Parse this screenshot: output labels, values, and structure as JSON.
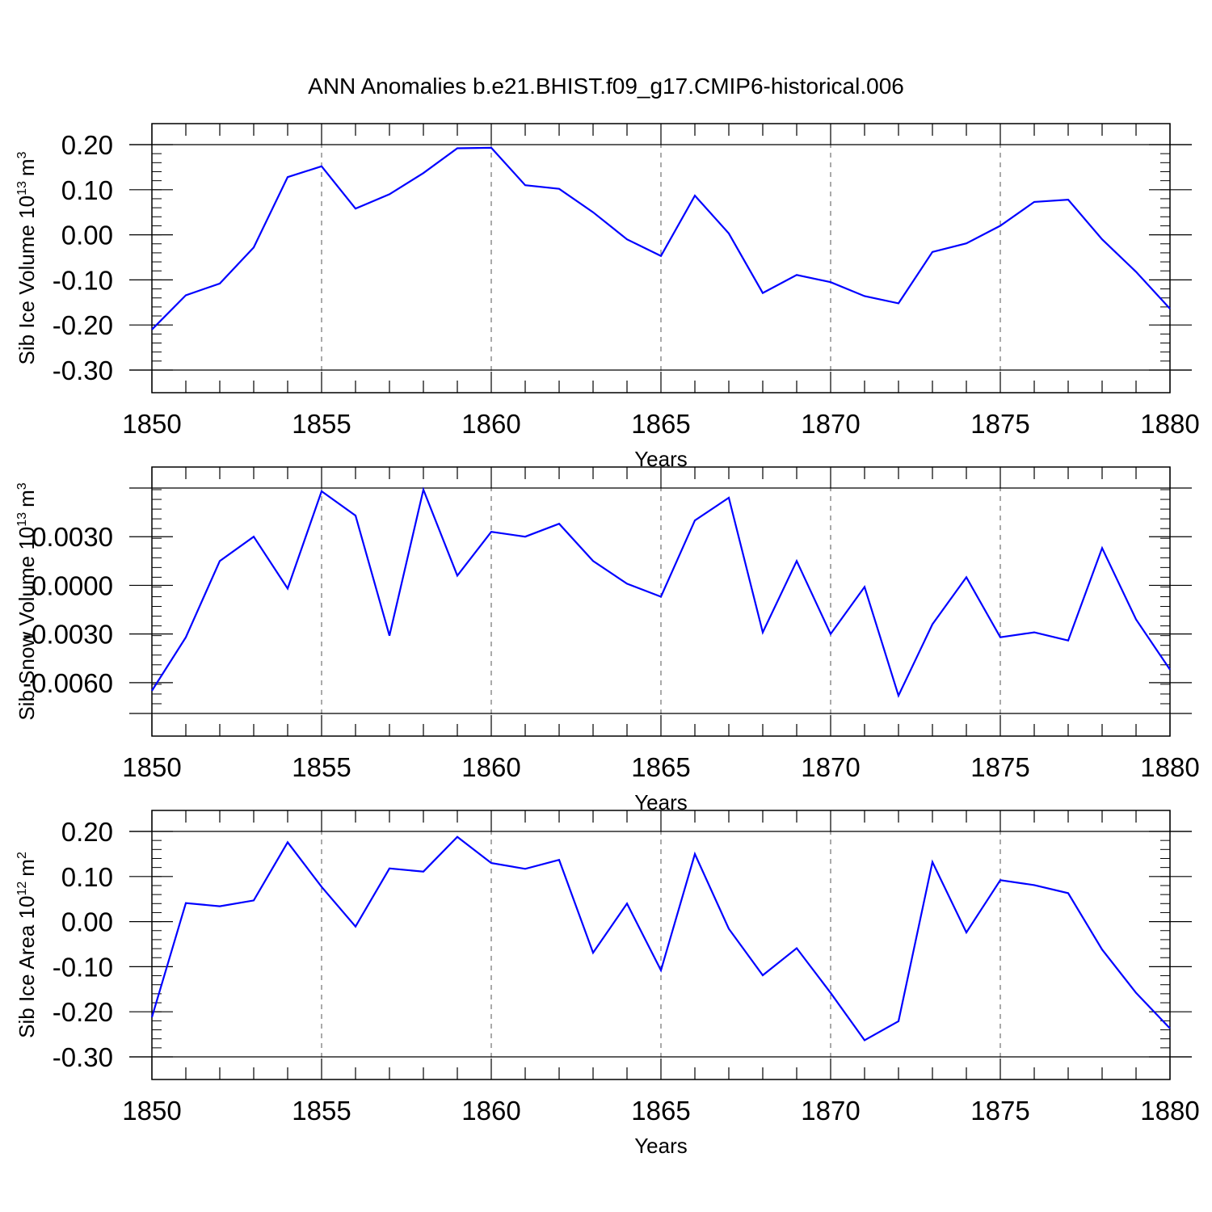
{
  "title": "ANN Anomalies b.e21.BHIST.f09_g17.CMIP6-historical.006",
  "chart_data": [
    {
      "type": "line",
      "title": "ANN Anomalies b.e21.BHIST.f09_g17.CMIP6-historical.006",
      "ylabel": "Sib Ice Volume 10",
      "ylabel_exp": "13",
      "ylabel_unit": "m",
      "ylabel_unit_exp": "3",
      "xlabel": "Years",
      "xlim": [
        1850,
        1880
      ],
      "ylim": [
        -0.3,
        0.2
      ],
      "x_ticks": [
        1850,
        1855,
        1860,
        1865,
        1870,
        1875,
        1880
      ],
      "x_tick_labels": [
        "1850",
        "1855",
        "1860",
        "1865",
        "1870",
        "1875",
        "1880"
      ],
      "y_ticks": [
        0.2,
        0.1,
        0.0,
        -0.1,
        -0.2,
        -0.3
      ],
      "y_tick_labels": [
        "0.20",
        "0.10",
        "0.00",
        "-0.10",
        "-0.20",
        "-0.30"
      ],
      "grid": "dashed vertical at major x ticks",
      "line_color": "#0000ff",
      "series": [
        {
          "name": "Sib Ice Volume",
          "x": [
            1850,
            1851,
            1852,
            1853,
            1854,
            1855,
            1856,
            1857,
            1858,
            1859,
            1860,
            1861,
            1862,
            1863,
            1864,
            1865,
            1866,
            1867,
            1868,
            1869,
            1870,
            1871,
            1872,
            1873,
            1874,
            1875,
            1876,
            1877,
            1878,
            1879,
            1880
          ],
          "values": [
            -0.21,
            -0.134,
            -0.108,
            -0.028,
            0.128,
            0.152,
            0.058,
            0.09,
            0.137,
            0.192,
            0.193,
            0.11,
            0.102,
            0.05,
            -0.01,
            -0.047,
            0.087,
            0.003,
            -0.129,
            -0.089,
            -0.105,
            -0.136,
            -0.152,
            -0.038,
            -0.019,
            0.02,
            0.073,
            0.078,
            -0.01,
            -0.082,
            -0.164
          ]
        }
      ]
    },
    {
      "type": "line",
      "ylabel": "Sib Snow Volume 10",
      "ylabel_exp": "13",
      "ylabel_unit": "m",
      "ylabel_unit_exp": "3",
      "xlabel": "Years",
      "xlim": [
        1850,
        1880
      ],
      "ylim": [
        -0.0079,
        0.006
      ],
      "x_ticks": [
        1850,
        1855,
        1860,
        1865,
        1870,
        1875,
        1880
      ],
      "x_tick_labels": [
        "1850",
        "1855",
        "1860",
        "1865",
        "1870",
        "1875",
        "1880"
      ],
      "y_ticks": [
        0.003,
        0.0,
        -0.003,
        -0.006
      ],
      "y_tick_labels": [
        "0.0030",
        "0.0000",
        "-0.0030",
        "-0.0060"
      ],
      "grid": "dashed vertical at major x ticks",
      "line_color": "#0000ff",
      "series": [
        {
          "name": "Sib Snow Volume",
          "x": [
            1850,
            1851,
            1852,
            1853,
            1854,
            1855,
            1856,
            1857,
            1858,
            1859,
            1860,
            1861,
            1862,
            1863,
            1864,
            1865,
            1866,
            1867,
            1868,
            1869,
            1870,
            1871,
            1872,
            1873,
            1874,
            1875,
            1876,
            1877,
            1878,
            1879,
            1880
          ],
          "values": [
            -0.0065,
            -0.0032,
            0.0015,
            0.003,
            -0.0002,
            0.0058,
            0.0043,
            -0.0031,
            0.0059,
            0.0006,
            0.0033,
            0.003,
            0.0038,
            0.0015,
            0.0001,
            -0.0007,
            0.004,
            0.0054,
            -0.0029,
            0.0015,
            -0.003,
            -0.0001,
            -0.0068,
            -0.0024,
            0.0005,
            -0.0032,
            -0.0029,
            -0.0034,
            0.0023,
            -0.0021,
            -0.0052
          ]
        }
      ]
    },
    {
      "type": "line",
      "ylabel": "Sib Ice Area 10",
      "ylabel_exp": "12",
      "ylabel_unit": "m",
      "ylabel_unit_exp": "2",
      "xlabel": "Years",
      "xlim": [
        1850,
        1880
      ],
      "ylim": [
        -0.3,
        0.2
      ],
      "x_ticks": [
        1850,
        1855,
        1860,
        1865,
        1870,
        1875,
        1880
      ],
      "x_tick_labels": [
        "1850",
        "1855",
        "1860",
        "1865",
        "1870",
        "1875",
        "1880"
      ],
      "y_ticks": [
        0.2,
        0.1,
        0.0,
        -0.1,
        -0.2,
        -0.3
      ],
      "y_tick_labels": [
        "0.20",
        "0.10",
        "0.00",
        "-0.10",
        "-0.20",
        "-0.30"
      ],
      "grid": "dashed vertical at major x ticks",
      "line_color": "#0000ff",
      "series": [
        {
          "name": "Sib Ice Area",
          "x": [
            1850,
            1851,
            1852,
            1853,
            1854,
            1855,
            1856,
            1857,
            1858,
            1859,
            1860,
            1861,
            1862,
            1863,
            1864,
            1865,
            1866,
            1867,
            1868,
            1869,
            1870,
            1871,
            1872,
            1873,
            1874,
            1875,
            1876,
            1877,
            1878,
            1879,
            1880
          ],
          "values": [
            -0.212,
            0.041,
            0.034,
            0.047,
            0.176,
            0.077,
            -0.011,
            0.118,
            0.111,
            0.188,
            0.13,
            0.117,
            0.137,
            -0.069,
            0.04,
            -0.108,
            0.15,
            -0.016,
            -0.119,
            -0.059,
            -0.158,
            -0.263,
            -0.221,
            0.132,
            -0.024,
            0.092,
            0.081,
            0.063,
            -0.062,
            -0.158,
            -0.237
          ]
        }
      ]
    }
  ]
}
